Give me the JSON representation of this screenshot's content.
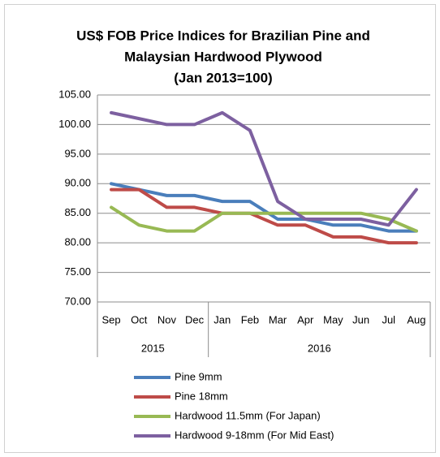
{
  "chart_data": {
    "type": "line",
    "title": [
      "US$ FOB Price Indices for Brazilian Pine and",
      "Malaysian Hardwood Plywood",
      "(Jan 2013=100)"
    ],
    "category_groups": [
      {
        "label": "2015",
        "categories": [
          "Sep",
          "Oct",
          "Nov",
          "Dec"
        ]
      },
      {
        "label": "2016",
        "categories": [
          "Jan",
          "Feb",
          "Mar",
          "Apr",
          "May",
          "Jun",
          "Jul",
          "Aug"
        ]
      }
    ],
    "series": [
      {
        "name": "Pine 9mm",
        "color": "#4a7ebb",
        "values": [
          90,
          89,
          88,
          88,
          87,
          87,
          84,
          84,
          83,
          83,
          82,
          82
        ]
      },
      {
        "name": "Pine 18mm",
        "color": "#be4b48",
        "values": [
          89,
          89,
          86,
          86,
          85,
          85,
          83,
          83,
          81,
          81,
          80,
          80
        ]
      },
      {
        "name": "Hardwood 11.5mm (For Japan)",
        "color": "#98b954",
        "values": [
          86,
          83,
          82,
          82,
          85,
          85,
          85,
          85,
          85,
          85,
          84,
          82
        ]
      },
      {
        "name": "Hardwood 9-18mm (For Mid East)",
        "color": "#7d60a0",
        "values": [
          102,
          101,
          100,
          100,
          102,
          99,
          87,
          84,
          84,
          84,
          83,
          89
        ]
      }
    ],
    "ylim": [
      70,
      105
    ],
    "yticks": [
      {
        "value": 70,
        "label": "70.00"
      },
      {
        "value": 75,
        "label": "75.00"
      },
      {
        "value": 80,
        "label": "80.00"
      },
      {
        "value": 85,
        "label": "85.00"
      },
      {
        "value": 90,
        "label": "90.00"
      },
      {
        "value": 95,
        "label": "95.00"
      },
      {
        "value": 100,
        "label": "100.00"
      },
      {
        "value": 105,
        "label": "105.00"
      }
    ],
    "grid": true,
    "legend": "bottom"
  }
}
